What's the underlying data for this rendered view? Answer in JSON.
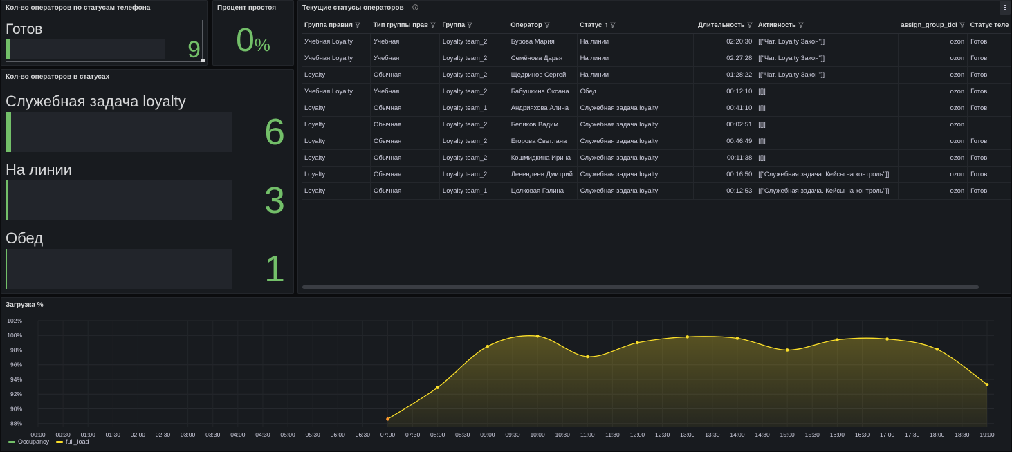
{
  "colors": {
    "green": "#73bf69",
    "yellow": "#fade2a",
    "orange": "#ff9830"
  },
  "phone_panel": {
    "title": "Кол-во операторов по статусам телефона",
    "label": "Готов",
    "value": "9",
    "fill": 0.03
  },
  "idle_panel": {
    "title": "Процент простоя",
    "value": "0",
    "unit": "%"
  },
  "status_panel": {
    "title": "Кол-во операторов в статусах",
    "items": [
      {
        "label": "Служебная задача loyalty",
        "value": "6",
        "fill": 0.025
      },
      {
        "label": "На линии",
        "value": "3",
        "fill": 0.013
      },
      {
        "label": "Обед",
        "value": "1",
        "fill": 0.005
      }
    ]
  },
  "table_panel": {
    "title": "Текущие статусы операторов",
    "info_icon": "info-icon",
    "menu_icon": "kebab-menu-icon",
    "columns": [
      "Группа правил",
      "Тип группы прав",
      "Группа",
      "Оператор",
      "Статус",
      "Длительность",
      "Активность",
      "assign_group_ticl",
      "Статус теле"
    ],
    "rows": [
      [
        "Учебная Loyalty",
        "Учебная",
        "Loyalty team_2",
        "Бурова Мария",
        "На линии",
        "02:20:30",
        "[[\"Чат. Loyalty Закон\"]]",
        "ozon",
        "Готов"
      ],
      [
        "Учебная Loyalty",
        "Учебная",
        "Loyalty team_2",
        "Семёнова Дарья",
        "На линии",
        "02:27:28",
        "[[\"Чат. Loyalty Закон\"]]",
        "ozon",
        "Готов"
      ],
      [
        "Loyalty",
        "Обычная",
        "Loyalty team_2",
        "Щедринов Сергей",
        "На линии",
        "01:28:22",
        "[[\"Чат. Loyalty Закон\"]]",
        "ozon",
        "Готов"
      ],
      [
        "Учебная Loyalty",
        "Учебная",
        "Loyalty team_2",
        "Бабушкина Оксана",
        "Обед",
        "00:12:10",
        "[[]]",
        "ozon",
        "Готов"
      ],
      [
        "Loyalty",
        "Обычная",
        "Loyalty team_1",
        "Андрияхова Алина",
        "Служебная задача loyalty",
        "00:41:10",
        "[[]]",
        "ozon",
        "Готов"
      ],
      [
        "Loyalty",
        "Обычная",
        "Loyalty team_2",
        "Беликов Вадим",
        "Служебная задача loyalty",
        "00:02:51",
        "[[]]",
        "ozon",
        ""
      ],
      [
        "Loyalty",
        "Обычная",
        "Loyalty team_2",
        "Егорова Светлана",
        "Служебная задача loyalty",
        "00:46:49",
        "[[]]",
        "ozon",
        "Готов"
      ],
      [
        "Loyalty",
        "Обычная",
        "Loyalty team_2",
        "Кошмидкина Ирина",
        "Служебная задача loyalty",
        "00:11:38",
        "[[]]",
        "ozon",
        "Готов"
      ],
      [
        "Loyalty",
        "Обычная",
        "Loyalty team_2",
        "Левендеев Дмитрий",
        "Служебная задача loyalty",
        "00:16:50",
        "[[\"Служебная задача. Кейсы на контроль\"]]",
        "ozon",
        "Готов"
      ],
      [
        "Loyalty",
        "Обычная",
        "Loyalty team_1",
        "Целковая Галина",
        "Служебная задача loyalty",
        "00:12:53",
        "[[\"Служебная задача. Кейсы на контроль\"]]",
        "ozon",
        "Готов"
      ]
    ]
  },
  "chart_data": {
    "type": "line",
    "title": "Загрузка %",
    "y_ticks": [
      "102%",
      "100%",
      "98%",
      "96%",
      "94%",
      "92%",
      "90%",
      "88%"
    ],
    "ylim": [
      87.5,
      102
    ],
    "x_ticks": [
      "00:00",
      "00:30",
      "01:00",
      "01:30",
      "02:00",
      "02:30",
      "03:00",
      "03:30",
      "04:00",
      "04:30",
      "05:00",
      "05:30",
      "06:00",
      "06:30",
      "07:00",
      "07:30",
      "08:00",
      "08:30",
      "09:00",
      "09:30",
      "10:00",
      "10:30",
      "11:00",
      "11:30",
      "12:00",
      "12:30",
      "13:00",
      "13:30",
      "14:00",
      "14:30",
      "15:00",
      "15:30",
      "16:00",
      "16:30",
      "17:00",
      "17:30",
      "18:00",
      "18:30",
      "19:00"
    ],
    "grid": true,
    "legend_position": "bottom-left",
    "series": [
      {
        "name": "Occupancy",
        "color": "#73bf69",
        "x": [],
        "values": []
      },
      {
        "name": "full_load",
        "color": "#fade2a",
        "x": [
          "07:00",
          "08:00",
          "09:00",
          "10:00",
          "11:00",
          "12:00",
          "13:00",
          "14:00",
          "15:00",
          "16:00",
          "17:00",
          "18:00",
          "19:00"
        ],
        "values": [
          88.6,
          92.9,
          98.5,
          99.9,
          97.1,
          99.0,
          99.8,
          99.6,
          98.0,
          99.4,
          99.5,
          98.1,
          93.3
        ]
      }
    ]
  }
}
